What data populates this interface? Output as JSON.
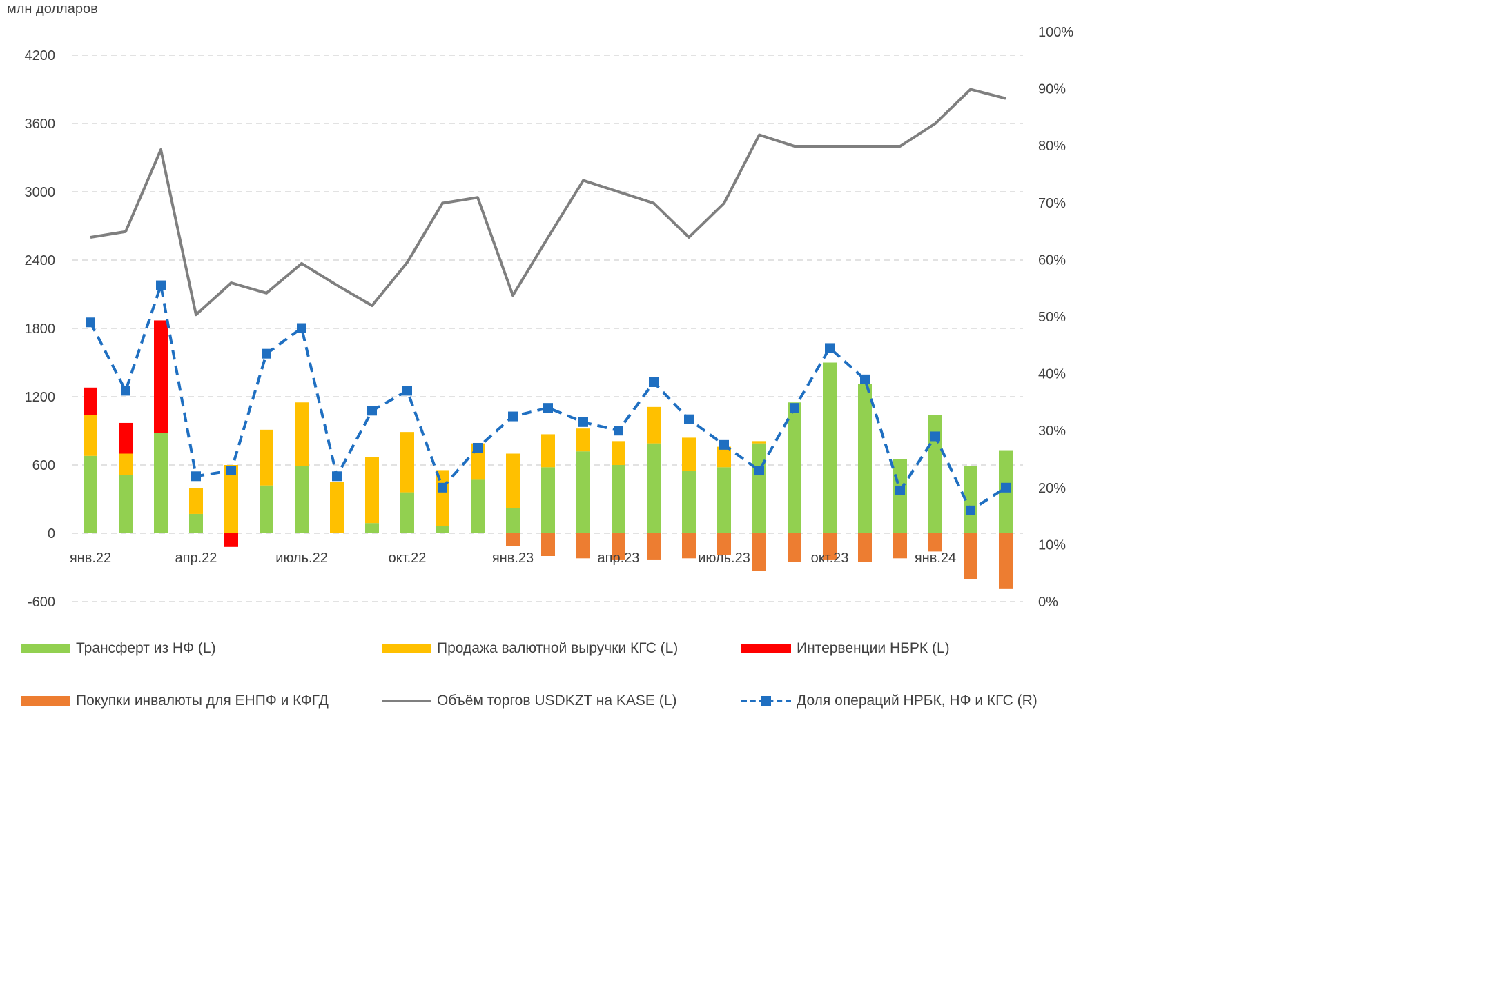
{
  "chart_data": {
    "type": "bar",
    "unit_label": "млн долларов",
    "categories": [
      "янв.22",
      "фев.22",
      "мар.22",
      "апр.22",
      "май.22",
      "июн.22",
      "июль.22",
      "авг.22",
      "сен.22",
      "окт.22",
      "ноя.22",
      "дек.22",
      "янв.23",
      "фев.23",
      "мар.23",
      "апр.23",
      "май.23",
      "июн.23",
      "июль.23",
      "авг.23",
      "сен.23",
      "окт.23",
      "ноя.23",
      "дек.23",
      "янв.24",
      "фев.24",
      "мар.24"
    ],
    "x_tick_labels": [
      "янв.22",
      "апр.22",
      "июль.22",
      "окт.22",
      "янв.23",
      "апр.23",
      "июль.23",
      "окт.23",
      "янв.24"
    ],
    "x_tick_indices": [
      0,
      3,
      6,
      9,
      12,
      15,
      18,
      21,
      24
    ],
    "y_left": {
      "min": -600,
      "max": 4200,
      "ticks": [
        -600,
        0,
        600,
        1200,
        1800,
        2400,
        3000,
        3600,
        4200
      ],
      "tick_labels": [
        "-600",
        "0",
        "600",
        "1200",
        "1800",
        "2400",
        "3000",
        "3600",
        "4200"
      ]
    },
    "y_right": {
      "min": 0,
      "max": 100,
      "ticks": [
        0,
        10,
        20,
        30,
        40,
        50,
        60,
        70,
        80,
        90,
        100
      ],
      "tick_labels": [
        "0%",
        "10%",
        "20%",
        "30%",
        "40%",
        "50%",
        "60%",
        "70%",
        "80%",
        "90%",
        "100%"
      ]
    },
    "grid": true,
    "legend_placement": "bottom",
    "series": [
      {
        "name": "Трансферт из НФ (L)",
        "kind": "bar",
        "axis": "left",
        "color": "#92d050",
        "values": [
          680,
          510,
          880,
          170,
          0,
          420,
          590,
          0,
          90,
          360,
          65,
          470,
          220,
          580,
          720,
          600,
          790,
          550,
          580,
          790,
          1150,
          1500,
          1310,
          650,
          1040,
          590,
          730
        ]
      },
      {
        "name": "Продажа валютной выручки КГС (L)",
        "kind": "bar",
        "axis": "left",
        "color": "#ffc000",
        "values": [
          360,
          190,
          0,
          230,
          600,
          490,
          560,
          450,
          580,
          530,
          490,
          320,
          480,
          290,
          200,
          210,
          320,
          290,
          180,
          20,
          0,
          0,
          0,
          0,
          0,
          0,
          0
        ]
      },
      {
        "name": "Интервенции НБРК (L)",
        "kind": "bar",
        "axis": "left",
        "color": "#ff0000",
        "values": [
          240,
          270,
          990,
          0,
          -120,
          0,
          0,
          0,
          0,
          0,
          0,
          0,
          0,
          0,
          0,
          0,
          0,
          0,
          0,
          0,
          0,
          0,
          0,
          0,
          0,
          0,
          0
        ]
      },
      {
        "name": "Покупки инвалюты для ЕНПФ и КФГД",
        "kind": "bar",
        "axis": "left",
        "color": "#ed7d31",
        "values": [
          0,
          0,
          0,
          0,
          0,
          0,
          0,
          0,
          0,
          0,
          0,
          0,
          -110,
          -200,
          -220,
          -230,
          -230,
          -220,
          -190,
          -330,
          -250,
          -230,
          -250,
          -220,
          -160,
          -400,
          -490
        ]
      },
      {
        "name": "Объём торгов USDKZT на KASE (L)",
        "kind": "line",
        "axis": "left",
        "color": "#7f7f7f",
        "values": [
          2600,
          2650,
          3370,
          1920,
          2200,
          2110,
          2370,
          2180,
          2000,
          2380,
          2900,
          2950,
          2090,
          2600,
          3100,
          3000,
          2900,
          2600,
          2900,
          3500,
          3400,
          3400,
          3400,
          3400,
          3600,
          3900,
          3820
        ]
      },
      {
        "name": "Доля операций НРБК, НФ и КГС (R)",
        "kind": "line-dashed-marker",
        "axis": "right",
        "color": "#1f6fc1",
        "values": [
          49,
          37,
          55.5,
          22,
          23,
          43.5,
          48,
          22,
          33.5,
          37,
          20,
          27,
          32.5,
          34,
          31.5,
          30,
          38.5,
          32,
          27.5,
          23,
          34,
          44.5,
          39,
          19.5,
          29,
          16,
          20
        ]
      }
    ]
  }
}
